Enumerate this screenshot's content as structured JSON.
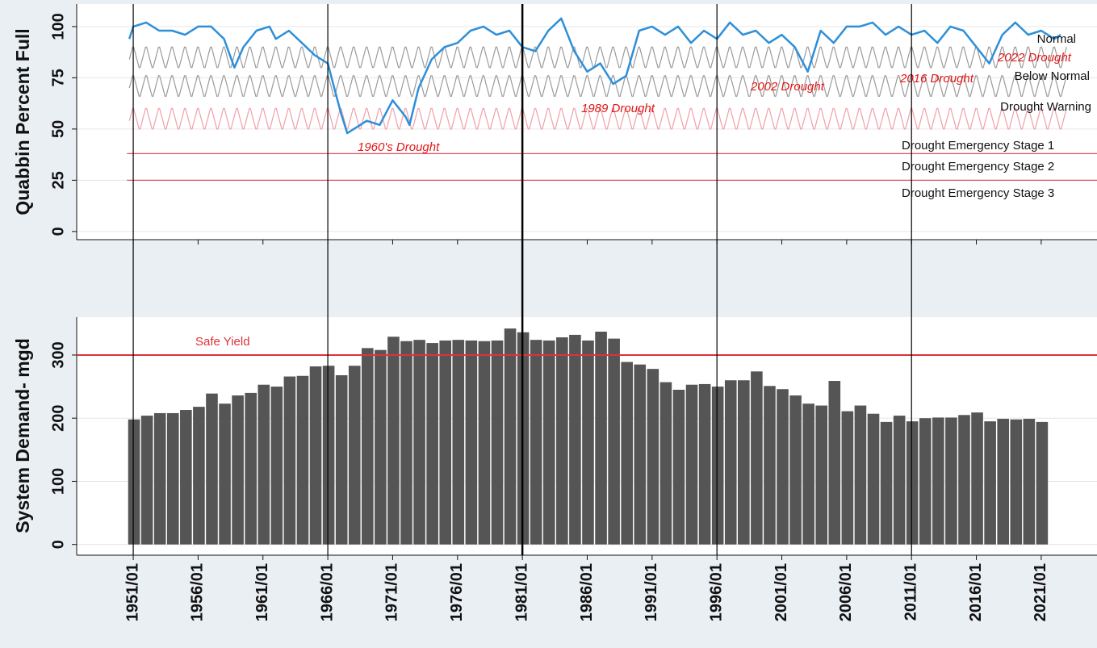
{
  "chart_data": [
    {
      "type": "line",
      "ylabel": "Quabbin Percent Full",
      "color": "#2e8fd8",
      "x": [
        1950.7,
        1951,
        1952,
        1953,
        1954,
        1955,
        1956,
        1957,
        1958,
        1958.8,
        1959.5,
        1960.5,
        1961.5,
        1962,
        1963,
        1964,
        1965,
        1966,
        1966.5,
        1967,
        1967.5,
        1968,
        1969,
        1970,
        1971,
        1972,
        1972.3,
        1973,
        1974,
        1975,
        1976,
        1977,
        1978,
        1979,
        1980,
        1981,
        1982,
        1983,
        1984,
        1985,
        1986,
        1987,
        1988,
        1989,
        1990,
        1991,
        1992,
        1993,
        1994,
        1995,
        1996,
        1997,
        1998,
        1999,
        2000,
        2001,
        2002,
        2003,
        2004,
        2005,
        2006,
        2007,
        2008,
        2009,
        2010,
        2011,
        2012,
        2013,
        2014,
        2015,
        2016,
        2017,
        2018,
        2019,
        2020,
        2021,
        2022,
        2022.5
      ],
      "values": [
        94,
        100,
        102,
        98,
        98,
        96,
        100,
        100,
        94,
        80,
        90,
        98,
        100,
        94,
        98,
        92,
        86,
        82,
        70,
        58,
        48,
        50,
        54,
        52,
        64,
        56,
        52,
        70,
        84,
        90,
        92,
        98,
        100,
        96,
        98,
        90,
        88,
        98,
        104,
        88,
        78,
        82,
        72,
        76,
        98,
        100,
        96,
        100,
        92,
        98,
        94,
        102,
        96,
        98,
        92,
        96,
        90,
        78,
        98,
        92,
        100,
        100,
        102,
        96,
        100,
        96,
        98,
        92,
        100,
        98,
        90,
        82,
        96,
        102,
        96,
        98,
        94,
        96
      ],
      "xlim": [
        1946.64,
        2025.3
      ],
      "ylim": [
        -4,
        111
      ],
      "yticks": [
        0,
        25,
        50,
        75,
        100
      ],
      "grid": true,
      "band_xlim": [
        1950.7,
        2023
      ],
      "bands": [
        {
          "name": "Normal",
          "color": "#9a9a9a",
          "profile": [
            90,
            88,
            86,
            84,
            82,
            80,
            80,
            82,
            84,
            86,
            88,
            90
          ]
        },
        {
          "name": "Below Normal",
          "color": "#9a9a9a",
          "profile": [
            76,
            74,
            72,
            70,
            68,
            66,
            66,
            68,
            70,
            72,
            74,
            76
          ]
        },
        {
          "name": "Drought Warning",
          "color": "#f0a0aa",
          "profile": [
            60,
            58,
            56,
            54,
            52,
            50,
            50,
            52,
            54,
            56,
            58,
            60
          ]
        }
      ],
      "lines": [
        {
          "value": 38,
          "color": "#e05060"
        },
        {
          "value": 25,
          "color": "#e05060"
        }
      ],
      "labels": [
        "Drought Emergency Stage 1",
        "Drought Emergency Stage 2",
        "Drought Emergency Stage 3"
      ],
      "annotations": [
        "1960's Drought",
        "1989 Drought",
        "2002 Drought",
        "2016 Drought",
        "2022 Drought"
      ],
      "vlines": [
        1951,
        1966,
        1981,
        1996,
        2011
      ]
    },
    {
      "type": "bar",
      "ylabel": "System Demand- mgd",
      "color": "#555555",
      "x": [
        1951,
        1952,
        1953,
        1954,
        1955,
        1956,
        1957,
        1958,
        1959,
        1960,
        1961,
        1962,
        1963,
        1964,
        1965,
        1966,
        1967,
        1968,
        1969,
        1970,
        1971,
        1972,
        1973,
        1974,
        1975,
        1976,
        1977,
        1978,
        1979,
        1980,
        1981,
        1982,
        1983,
        1984,
        1985,
        1986,
        1987,
        1988,
        1989,
        1990,
        1991,
        1992,
        1993,
        1994,
        1995,
        1996,
        1997,
        1998,
        1999,
        2000,
        2001,
        2002,
        2003,
        2004,
        2005,
        2006,
        2007,
        2008,
        2009,
        2010,
        2011,
        2012,
        2013,
        2014,
        2015,
        2016,
        2017,
        2018,
        2019,
        2020,
        2021
      ],
      "values": [
        198,
        204,
        208,
        208,
        213,
        218,
        239,
        223,
        236,
        240,
        253,
        250,
        266,
        267,
        282,
        283,
        268,
        283,
        311,
        308,
        329,
        322,
        324,
        319,
        323,
        324,
        323,
        322,
        323,
        342,
        336,
        324,
        323,
        328,
        332,
        323,
        337,
        326,
        289,
        285,
        278,
        257,
        245,
        253,
        254,
        250,
        260,
        260,
        274,
        251,
        246,
        236,
        223,
        220,
        259,
        211,
        220,
        207,
        194,
        204,
        195,
        200,
        201,
        201,
        205,
        209,
        195,
        199,
        198,
        199,
        194
      ],
      "xlim": [
        1946.64,
        2025.3
      ],
      "ylim": [
        -17,
        360
      ],
      "yticks": [
        0,
        100,
        200,
        300
      ],
      "grid": true,
      "reference": {
        "label": "Safe Yield",
        "value": 300,
        "color": "#e0303a"
      },
      "xticks": [
        {
          "value": 1951,
          "label": "1951/01"
        },
        {
          "value": 1956,
          "label": "1956/01"
        },
        {
          "value": 1961,
          "label": "1961/01"
        },
        {
          "value": 1966,
          "label": "1966/01"
        },
        {
          "value": 1971,
          "label": "1971/01"
        },
        {
          "value": 1976,
          "label": "1976/01"
        },
        {
          "value": 1981,
          "label": "1981/01"
        },
        {
          "value": 1986,
          "label": "1986/01"
        },
        {
          "value": 1991,
          "label": "1991/01"
        },
        {
          "value": 1996,
          "label": "1996/01"
        },
        {
          "value": 2001,
          "label": "2001/01"
        },
        {
          "value": 2006,
          "label": "2006/01"
        },
        {
          "value": 2011,
          "label": "2011/01"
        },
        {
          "value": 2016,
          "label": "2016/01"
        },
        {
          "value": 2021,
          "label": "2021/01"
        }
      ],
      "vlines": [
        1951,
        1966,
        1981,
        1996,
        2011
      ]
    }
  ]
}
